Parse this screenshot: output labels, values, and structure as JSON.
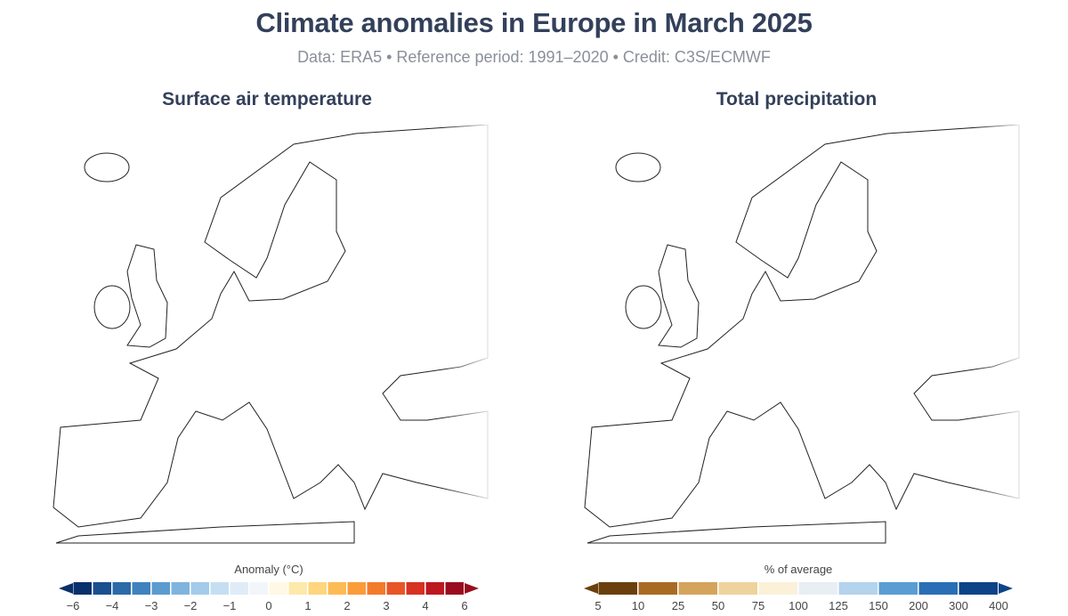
{
  "title": "Climate anomalies in Europe in March 2025",
  "subtitle": "Data: ERA5 • Reference period: 1991–2020 • Credit: C3S/ECMWF",
  "panels": [
    {
      "title": "Surface air temperature",
      "legend": {
        "label": "Anomaly (°C)",
        "ticks": [
          "−6",
          "−4",
          "−3",
          "−2",
          "−1",
          "0",
          "1",
          "2",
          "3",
          "4",
          "6"
        ],
        "colors": [
          "#08306b",
          "#1b4f8f",
          "#2c6aa8",
          "#3f82bd",
          "#5b9bd0",
          "#7fb4de",
          "#a4cbe9",
          "#c6def2",
          "#dfecf8",
          "#f2f6fb",
          "#fff8e4",
          "#fde9a9",
          "#fdd67d",
          "#fdbb55",
          "#fa9c3a",
          "#f47a2b",
          "#e85627",
          "#d63123",
          "#bd1820",
          "#990d1e"
        ]
      }
    },
    {
      "title": "Total precipitation",
      "legend": {
        "label": "% of average",
        "ticks": [
          "5",
          "10",
          "25",
          "50",
          "75",
          "100",
          "125",
          "150",
          "200",
          "300",
          "400"
        ],
        "colors": [
          "#6b3f0d",
          "#a96b24",
          "#d4a45c",
          "#eed39c",
          "#fbf1d9",
          "#e9eef5",
          "#b4d3ec",
          "#5a9dd3",
          "#2a6fb6",
          "#0d4487"
        ]
      }
    }
  ]
}
